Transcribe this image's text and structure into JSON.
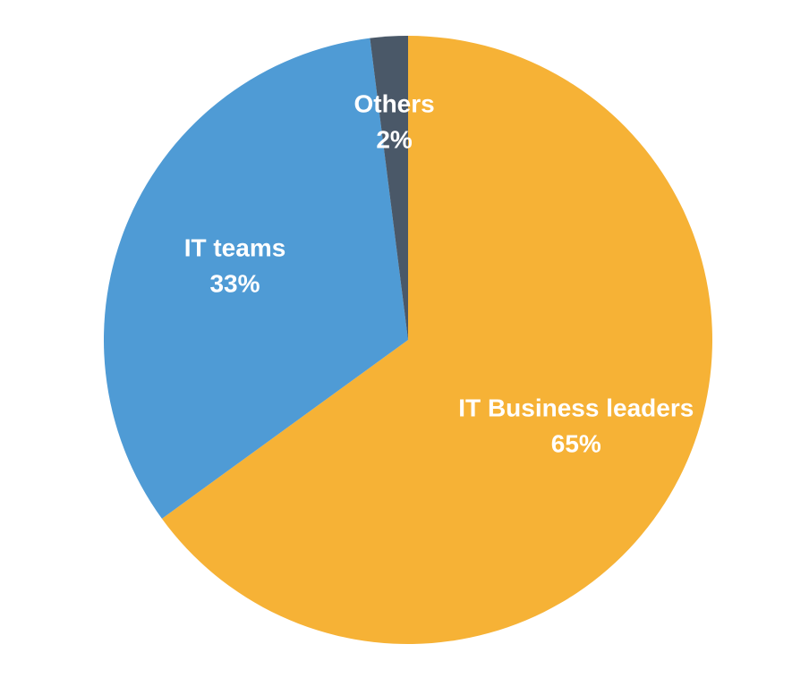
{
  "chart_data": {
    "type": "pie",
    "title": "",
    "start_angle_deg": 0,
    "direction": "clockwise",
    "slices": [
      {
        "label": "IT Business leaders",
        "value": 65,
        "value_label": "65%",
        "color": "#F6B236"
      },
      {
        "label": "IT teams",
        "value": 33,
        "value_label": "33%",
        "color": "#4F9BD5"
      },
      {
        "label": "Others",
        "value": 2,
        "value_label": "2%",
        "color": "#4A5868"
      }
    ]
  }
}
